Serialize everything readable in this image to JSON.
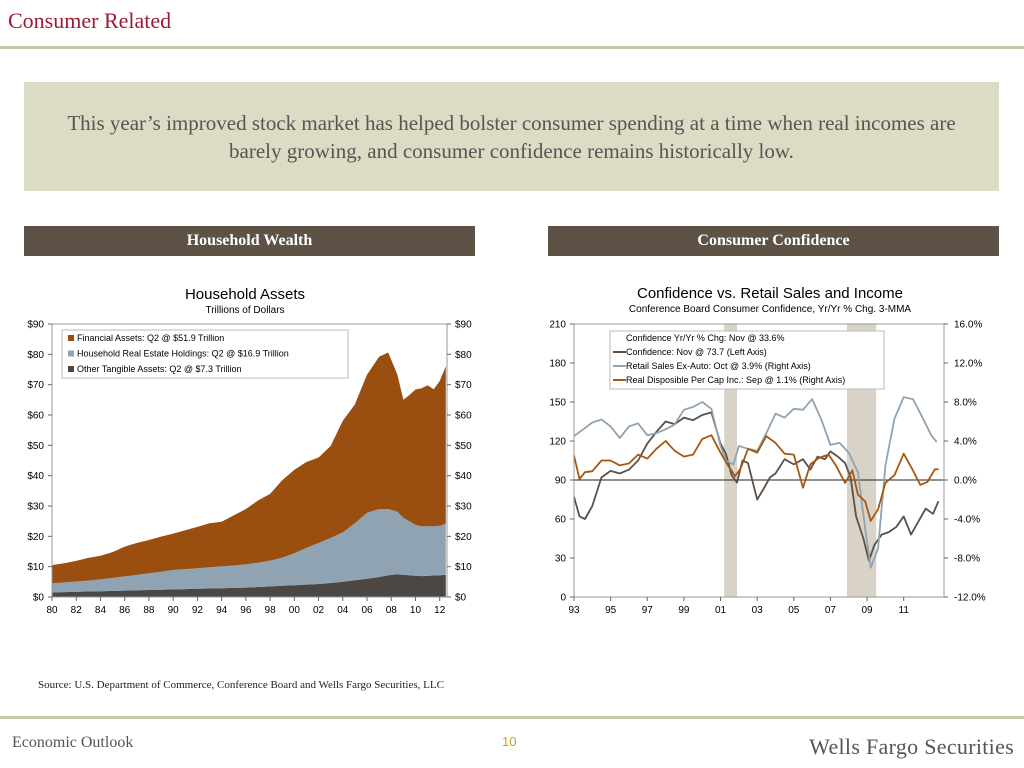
{
  "page": {
    "title": "Consumer Related",
    "callout": "This year’s improved stock market has helped bolster consumer spending at a time when real incomes are barely growing, and consumer confidence remains historically low.",
    "section_left": "Household Wealth",
    "section_right": "Consumer Confidence",
    "source": "Source: U.S. Department of Commerce, Conference Board and Wells Fargo Securities, LLC",
    "footer_left": "Economic Outlook",
    "page_number": "10",
    "footer_brand": "Wells Fargo Securities"
  },
  "colors": {
    "title_red": "#9b1b30",
    "financial": "#9a4e0f",
    "real_estate": "#8fa3b3",
    "other_tangible": "#4d4744",
    "confidence_yy": "#ffffff",
    "confidence": "#5b5049",
    "retail": "#8fa3b3",
    "income": "#a8580e",
    "recession": "#d8d3c6"
  },
  "chart_data": [
    {
      "type": "area",
      "title": "Household Assets",
      "subtitle": "Trillions of Dollars",
      "x_tick_labels": [
        "80",
        "82",
        "84",
        "86",
        "88",
        "90",
        "92",
        "94",
        "96",
        "98",
        "00",
        "02",
        "04",
        "06",
        "08",
        "10",
        "12"
      ],
      "x_range": [
        1980,
        2012.6
      ],
      "ylim": [
        0,
        90
      ],
      "y_tick_labels": [
        "$0",
        "$10",
        "$20",
        "$30",
        "$40",
        "$50",
        "$60",
        "$70",
        "$80",
        "$90"
      ],
      "y_tick_labels_right": [
        "$0",
        "$10",
        "$20",
        "$30",
        "$40",
        "$50",
        "$60",
        "$70",
        "$80",
        "$90"
      ],
      "stacked": true,
      "legend_position": "top-left",
      "x": [
        1980,
        1981,
        1982,
        1983,
        1984,
        1985,
        1986,
        1987,
        1988,
        1989,
        1990,
        1991,
        1992,
        1993,
        1994,
        1995,
        1996,
        1997,
        1998,
        1999,
        2000,
        2001,
        2002,
        2003,
        2004,
        2005,
        2006,
        2007,
        2007.75,
        2008.5,
        2009.0,
        2009.5,
        2010.0,
        2010.5,
        2011.0,
        2011.5,
        2012.0,
        2012.5
      ],
      "series": [
        {
          "name": "Other Tangible Assets: Q2 @ $7.3 Trillion",
          "values": [
            1.5,
            1.6,
            1.7,
            1.8,
            1.9,
            2.0,
            2.1,
            2.2,
            2.3,
            2.4,
            2.5,
            2.6,
            2.7,
            2.8,
            2.9,
            3.0,
            3.1,
            3.3,
            3.5,
            3.7,
            3.9,
            4.1,
            4.3,
            4.6,
            5.0,
            5.5,
            6.0,
            6.6,
            7.2,
            7.5,
            7.3,
            7.2,
            7.0,
            6.9,
            7.0,
            7.1,
            7.2,
            7.3
          ]
        },
        {
          "name": "Household Real Estate Holdings: Q2 @ $16.9 Trillion",
          "values": [
            3.0,
            3.2,
            3.4,
            3.6,
            3.9,
            4.3,
            4.7,
            5.1,
            5.5,
            5.9,
            6.4,
            6.6,
            6.8,
            7.0,
            7.2,
            7.4,
            7.7,
            8.0,
            8.5,
            9.3,
            10.5,
            12.1,
            13.5,
            14.9,
            16.3,
            18.8,
            21.8,
            22.4,
            21.8,
            20.6,
            18.8,
            17.8,
            16.8,
            16.4,
            16.3,
            16.2,
            16.3,
            16.9
          ]
        },
        {
          "name": "Financial Assets: Q2 @ $51.9 Trillion",
          "values": [
            6.0,
            6.3,
            6.8,
            7.5,
            7.8,
            8.5,
            9.8,
            10.5,
            11.0,
            11.6,
            12.0,
            12.8,
            13.6,
            14.5,
            14.7,
            16.5,
            18.2,
            20.5,
            22.0,
            25.5,
            27.5,
            28.3,
            28.2,
            30.3,
            36.8,
            39.2,
            45.5,
            50.2,
            51.6,
            45.3,
            38.9,
            41.6,
            44.6,
            45.5,
            46.5,
            45.2,
            47.7,
            51.9
          ]
        }
      ]
    },
    {
      "type": "line",
      "title": "Confidence vs. Retail Sales and Income",
      "subtitle": "Conference Board Consumer Confidence, Yr/Yr % Chg. 3-MMA",
      "x_tick_labels": [
        "93",
        "95",
        "97",
        "99",
        "01",
        "03",
        "05",
        "07",
        "09",
        "11"
      ],
      "x_range": [
        1993,
        2013.2
      ],
      "ylim_left": [
        0,
        210
      ],
      "y_tick_labels_left": [
        "0",
        "30",
        "60",
        "90",
        "120",
        "150",
        "180",
        "210"
      ],
      "ylim_right": [
        -12,
        16
      ],
      "y_tick_labels_right": [
        "-12.0%",
        "-8.0%",
        "-4.0%",
        "0.0%",
        "4.0%",
        "8.0%",
        "12.0%",
        "16.0%"
      ],
      "reference_line_left": 90,
      "recession_periods": [
        [
          2001.2,
          2001.9
        ],
        [
          2007.9,
          2009.5
        ]
      ],
      "legend_position": "top-right",
      "series": [
        {
          "name": "Confidence Yr/Yr % Chg: Nov @ 33.6%",
          "axis": "none",
          "values": []
        },
        {
          "name": "Confidence: Nov @ 73.7 (Left Axis)",
          "axis": "left",
          "x": [
            1993.0,
            1993.3,
            1993.6,
            1994.0,
            1994.5,
            1995.0,
            1995.5,
            1996.0,
            1996.5,
            1997.0,
            1997.5,
            1998.0,
            1998.5,
            1999.0,
            1999.5,
            2000.0,
            2000.5,
            2001.0,
            2001.3,
            2001.6,
            2001.9,
            2002.2,
            2002.5,
            2002.8,
            2003.0,
            2003.3,
            2003.7,
            2004.0,
            2004.5,
            2005.0,
            2005.5,
            2005.9,
            2006.3,
            2006.7,
            2007.0,
            2007.4,
            2007.8,
            2008.1,
            2008.4,
            2008.8,
            2009.1,
            2009.4,
            2009.8,
            2010.2,
            2010.6,
            2011.0,
            2011.4,
            2011.8,
            2012.2,
            2012.6,
            2012.9
          ],
          "values": [
            77,
            62,
            60,
            70,
            92,
            97,
            95,
            98,
            105,
            118,
            127,
            135,
            133,
            138,
            136,
            140,
            142,
            118,
            110,
            94,
            88,
            105,
            103,
            86,
            75,
            82,
            92,
            95,
            106,
            102,
            106,
            98,
            108,
            106,
            112,
            108,
            103,
            92,
            62,
            45,
            28,
            40,
            48,
            50,
            54,
            62,
            48,
            58,
            68,
            64,
            73.7
          ]
        },
        {
          "name": "Retail Sales Ex-Auto: Oct @ 3.9% (Right Axis)",
          "axis": "right",
          "x": [
            1993.0,
            1993.5,
            1994.0,
            1994.5,
            1995.0,
            1995.5,
            1996.0,
            1996.5,
            1997.0,
            1997.5,
            1998.0,
            1998.5,
            1999.0,
            1999.5,
            2000.0,
            2000.5,
            2001.0,
            2001.3,
            2001.7,
            2002.0,
            2002.5,
            2003.0,
            2003.5,
            2004.0,
            2004.5,
            2005.0,
            2005.5,
            2006.0,
            2006.5,
            2007.0,
            2007.5,
            2008.0,
            2008.5,
            2008.9,
            2009.2,
            2009.6,
            2010.0,
            2010.5,
            2011.0,
            2011.5,
            2012.0,
            2012.5,
            2012.8
          ],
          "values": [
            4.5,
            5.2,
            5.9,
            6.2,
            5.5,
            4.3,
            5.5,
            5.8,
            4.6,
            4.8,
            5.2,
            5.7,
            7.2,
            7.5,
            8.0,
            7.3,
            3.5,
            2.0,
            1.6,
            3.5,
            3.2,
            3.0,
            4.8,
            6.8,
            6.4,
            7.3,
            7.2,
            8.3,
            6.2,
            3.6,
            3.8,
            2.8,
            0.8,
            -5.0,
            -9.0,
            -7.0,
            1.5,
            6.3,
            8.5,
            8.3,
            6.5,
            4.6,
            3.9
          ]
        },
        {
          "name": "Real Disposible Per Cap Inc.: Sep @ 1.1% (Right Axis)",
          "axis": "right",
          "x": [
            1993.0,
            1993.3,
            1993.6,
            1994.0,
            1994.5,
            1995.0,
            1995.5,
            1996.0,
            1996.5,
            1997.0,
            1997.5,
            1998.0,
            1998.5,
            1999.0,
            1999.5,
            2000.0,
            2000.5,
            2001.0,
            2001.4,
            2001.8,
            2002.1,
            2002.5,
            2003.0,
            2003.5,
            2004.0,
            2004.5,
            2005.0,
            2005.5,
            2005.9,
            2006.4,
            2006.9,
            2007.3,
            2007.8,
            2008.2,
            2008.5,
            2008.9,
            2009.2,
            2009.6,
            2010.0,
            2010.5,
            2011.0,
            2011.5,
            2011.9,
            2012.3,
            2012.7,
            2012.9
          ],
          "values": [
            2.5,
            0.1,
            0.8,
            0.9,
            2.0,
            2.0,
            1.5,
            1.7,
            2.6,
            2.2,
            3.2,
            4.0,
            3.0,
            2.4,
            2.6,
            4.2,
            4.6,
            2.8,
            1.5,
            0.4,
            1.2,
            3.2,
            2.8,
            4.5,
            3.8,
            2.7,
            2.6,
            -0.8,
            1.6,
            2.3,
            2.6,
            1.5,
            -0.3,
            1.0,
            -1.5,
            -2.2,
            -4.2,
            -3.0,
            -0.3,
            0.5,
            2.7,
            1.0,
            -0.5,
            -0.2,
            1.1,
            1.1
          ]
        }
      ]
    }
  ]
}
